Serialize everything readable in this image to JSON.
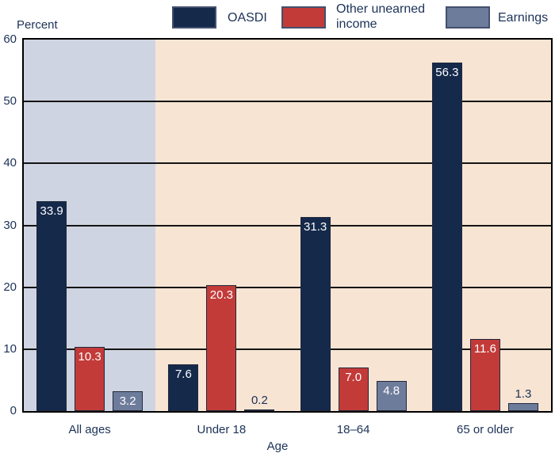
{
  "chart_data": {
    "type": "bar",
    "title": "",
    "ylabel": "Percent",
    "xlabel": "Age",
    "categories": [
      "All ages",
      "Under 18",
      "18–64",
      "65 or older"
    ],
    "series": [
      {
        "name": "OASDI",
        "values": [
          33.9,
          7.6,
          31.3,
          56.3
        ],
        "labels": [
          "33.9",
          "7.6",
          "31.3",
          "56.3"
        ],
        "color": "#15294b"
      },
      {
        "name": "Other unearned income",
        "values": [
          10.3,
          20.3,
          7.0,
          11.6
        ],
        "labels": [
          "10.3",
          "20.3",
          "7.0",
          "11.6"
        ],
        "color": "#c33b39"
      },
      {
        "name": "Earnings",
        "values": [
          3.2,
          0.2,
          4.8,
          1.3
        ],
        "labels": [
          "3.2",
          "0.2",
          "4.8",
          "1.3"
        ],
        "color": "#6e7c9c"
      }
    ],
    "ylim": [
      0,
      60
    ],
    "yticks": [
      0,
      10,
      20,
      30,
      40,
      50,
      60
    ],
    "grid": true,
    "legend_position": "top",
    "highlight_band_category": "All ages",
    "colors": {
      "band_all_ages": "#cfd4e2",
      "plot_background": "#f7e4d3",
      "gridline": "#141414",
      "plot_border": "#000000",
      "axis_text": "#1c3258",
      "value_label_inside": "#ffffff",
      "value_label_outside": "#1c3258",
      "legend_swatch_border": "#44506e"
    }
  }
}
